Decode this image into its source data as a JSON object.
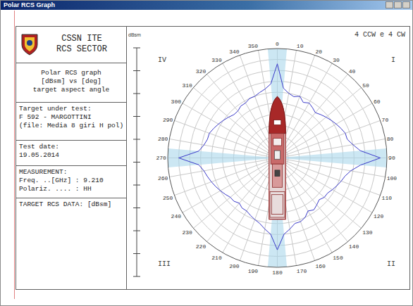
{
  "window_title": "Polar RCS Graph",
  "panel": {
    "header": [
      "CSSN ITE",
      "RCS SECTOR"
    ],
    "graph_info": [
      "Polar RCS graph",
      "[dBsm] vs [deg]",
      "target aspect angle"
    ],
    "target": [
      "Target under test:",
      "F 592 - MARGOTTINI",
      "(file: Media 8 giri H pol)"
    ],
    "date": [
      "Test date:",
      "19.05.2014"
    ],
    "measurement": [
      "MEASUREMENT:",
      "Freq. ..[GHz] : 9.210",
      "Polariz. .... : HH"
    ],
    "rcs_data": [
      "TARGET RCS DATA: [dBsm]"
    ]
  },
  "chart_data": {
    "type": "polar",
    "y_label": "dBsm",
    "annotation": "4 CCW e 4 CW",
    "quadrant_labels": [
      "I",
      "II",
      "III",
      "IV"
    ],
    "x": [
      0,
      5,
      10,
      15,
      20,
      25,
      30,
      35,
      40,
      45,
      50,
      55,
      60,
      65,
      70,
      75,
      80,
      85,
      90,
      95,
      100,
      105,
      110,
      115,
      120,
      125,
      130,
      135,
      140,
      145,
      150,
      155,
      160,
      165,
      170,
      175,
      180,
      185,
      190,
      195,
      200,
      205,
      210,
      215,
      220,
      225,
      230,
      235,
      240,
      245,
      250,
      255,
      260,
      265,
      270,
      275,
      280,
      285,
      290,
      295,
      300,
      305,
      310,
      315,
      320,
      325,
      330,
      335,
      340,
      345,
      350,
      355
    ],
    "values": [
      43,
      32,
      30,
      29,
      30,
      28,
      29,
      28,
      27,
      28,
      29,
      30,
      31,
      32,
      33,
      33,
      35,
      38,
      47,
      38,
      34,
      32,
      31,
      30,
      29,
      28,
      28,
      27,
      28,
      29,
      28,
      30,
      31,
      31,
      33,
      35,
      42,
      35,
      33,
      31,
      30,
      29,
      28,
      28,
      27,
      28,
      28,
      29,
      30,
      31,
      32,
      33,
      34,
      36,
      45,
      36,
      34,
      33,
      33,
      32,
      31,
      30,
      29,
      28,
      28,
      29,
      29,
      30,
      30,
      31,
      32,
      34
    ],
    "color": "#3a3ac8",
    "bands": [
      {
        "center": 0,
        "width": 10
      },
      {
        "center": 90,
        "width": 10
      },
      {
        "center": 180,
        "width": 10
      },
      {
        "center": 270,
        "width": 10
      }
    ],
    "xlim": [
      0,
      360
    ],
    "xticks": [
      0,
      10,
      20,
      30,
      40,
      50,
      60,
      70,
      80,
      90,
      100,
      110,
      120,
      130,
      140,
      150,
      160,
      170,
      180,
      190,
      200,
      210,
      220,
      230,
      240,
      250,
      260,
      270,
      280,
      290,
      300,
      310,
      320,
      330,
      340,
      350
    ],
    "ylim": [
      0,
      50
    ],
    "yticks": [
      0,
      5,
      10,
      15,
      20,
      25,
      30,
      35,
      40,
      45,
      50
    ],
    "grid": true,
    "tick_labels": "x"
  }
}
